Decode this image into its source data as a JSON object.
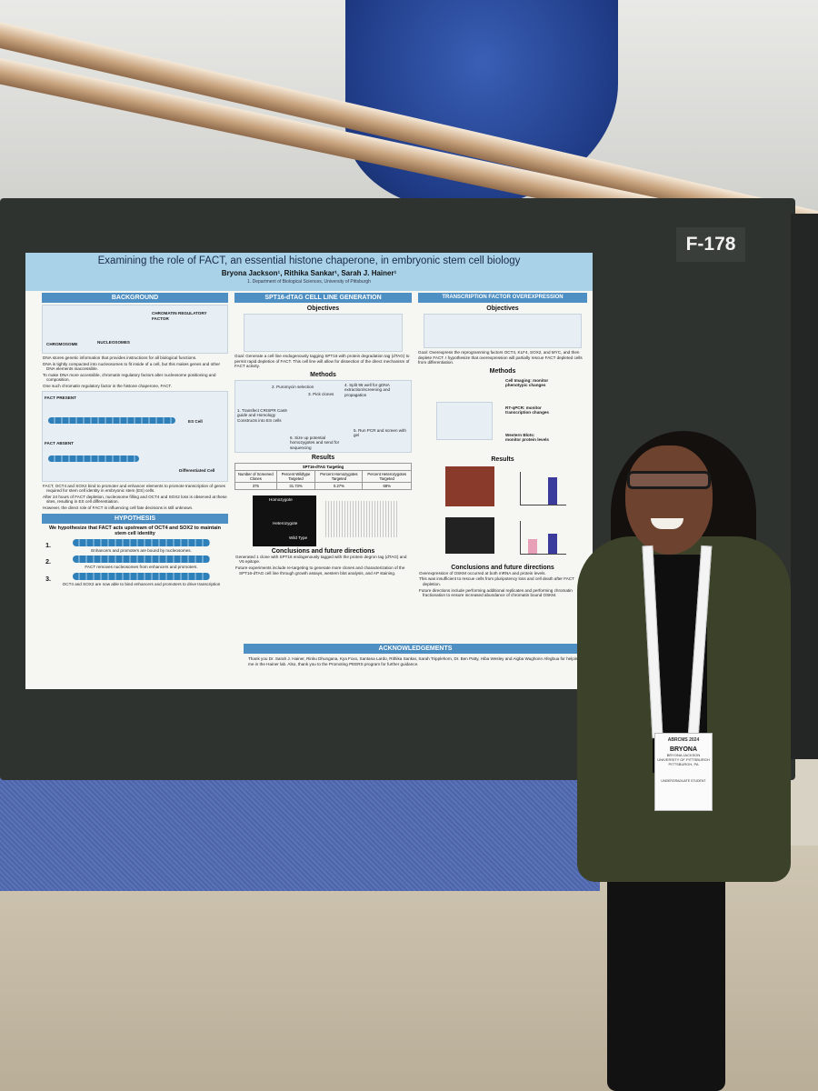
{
  "sign": "F-178",
  "poster": {
    "title": "Examining the role of FACT, an essential histone chaperone, in embryonic stem cell biology",
    "authors": "Bryona Jackson¹, Rithika Sankar¹, Sarah J. Hainer¹",
    "affiliation": "1. Department of Biological Sciences, University of Pittsburgh",
    "background": {
      "heading": "BACKGROUND",
      "bullets": [
        "DNA stores genetic information that provides instructions for all biological functions.",
        "DNA is tightly compacted into nucleosomes to fit inside of a cell, but this makes genes and other DNA elements inaccessible.",
        "To make DNA more accessible, chromatin regulatory factors alter nucleosome positioning and composition.",
        "One such chromatin regulatory factor is the histone chaperone, FACT."
      ],
      "diagram_labels": [
        "CHROMOSOME",
        "NUCLEOSOMES",
        "CHROMATIN REGULATORY FACTOR",
        "FACT PRESENT",
        "FACT ABSENT",
        "ES Cell",
        "Differentiated Cell"
      ],
      "bullets2": [
        "FACT, OCT4 and SOX2 bind to promoter and enhancer elements to promote transcription of genes required for stem cell identity in embryonic stem (ES) cells.",
        "After 24 hours of FACT depletion, nucleosome filling and OCT4 and SOX2 loss is observed at these sites, resulting in ES cell differentiation.",
        "However, the direct role of FACT in influencing cell fate decisions is still unknown."
      ]
    },
    "hypothesis": {
      "heading": "HYPOTHESIS",
      "statement": "We hypothesize that FACT acts upstream of OCT4 and SOX2 to maintain stem cell identity",
      "steps": [
        {
          "number": "1.",
          "text": "Enhancers and promoters are bound by nucleosomes."
        },
        {
          "number": "2.",
          "text": "FACT removes nucleosomes from enhancers and promoters."
        },
        {
          "number": "3.",
          "text": "OCT4 and SOX2 are now able to bind enhancers and promoters to drive transcription"
        }
      ]
    },
    "spt16": {
      "heading": "SPT16-dTAG CELL LINE GENERATION",
      "objectives": "Objectives",
      "goal": "Goal: Generate a cell line endogenously tagging SPT16 with protein degradation tag (dTAG) to permit rapid depletion of FACT. This cell line will allow for dissection of the direct mechanism of FACT activity.",
      "methods": "Methods",
      "method_steps": [
        "1. Transfect CRISPR Cas9 guide and Homology Constructs into ES cells",
        "2. Puromycin selection",
        "3. Pick clones",
        "4. Split 96 well for gDNA extraction/screening and propagation",
        "5. Run PCR and screen with gel",
        "6. Size up potential homozygotes and send for sequencing"
      ],
      "results": "Results",
      "table": {
        "caption": "SPT16-dTAG Targeting",
        "header": [
          "Number of Screened Clones",
          "Percent Wildtype Targeted",
          "Percent Homozygotes Targeted",
          "Percent Heterozygotes Targeted"
        ],
        "row": [
          "375",
          "31.73%",
          "0.27%",
          "68%"
        ]
      },
      "gel_labels": [
        "Homozygote",
        "Heterozygote",
        "Wild Type"
      ],
      "conclusions": "Conclusions and future directions",
      "conclusion_bullets": [
        "Generated 1 clone with SPT16 endogenously tagged with the protein degron tag (dTAG) and V5 epitope.",
        "Future experiments include re-targeting to generate more clones and characterization of the SPT16-dTAG cell line through growth assays, western blot analysis, and AP staining."
      ]
    },
    "tf": {
      "heading": "TRANSCRIPTION FACTOR OVEREXPRESSION",
      "objectives": "Objectives",
      "goal": "Goal: Overexpress the reprogramming factors OCT4, KLF4, SOX2, and MYC, and then deplete FACT. I hypothesize that overexpression will partially rescue FACT depleted cells from differentiation.",
      "methods": "Methods",
      "method_labels": [
        "Cell Imaging: monitor phenotypic changes",
        "RT-qPCR: monitor transcription changes",
        "Western Blots: monitor protein levels"
      ],
      "results": "Results",
      "conclusions": "Conclusions and future directions",
      "conclusion_bullets": [
        "Overexpression of OSKM occurred at both mRNA and protein levels.",
        "This was insufficient to rescue cells from pluripotency loss and cell death after FACT depletion.",
        "Future directions include performing additional replicates and performing chromatin fractionation to ensure increased abundance of chromatin bound OSKM."
      ]
    },
    "acknowledgements": {
      "heading": "ACKNOWLEDGEMENTS",
      "text": "Thank you Dr. Sarah J. Hainer, Rinku Dhungana, Kya Foxx, Santana Lardo, Rithika Sankar, Sarah Tripplehorn, Dr. Ben Patty, Hiba Wesley and Aigba Wughonn Afegbua for helping me in the Hainer lab. Also, thank you to the Promoting PEERS program for further guidance."
    }
  },
  "badge": {
    "event": "ABRCMS 2024",
    "first_name": "BRYONA",
    "full_name": "BRYONA JACKSON",
    "institution": "UNIVERSITY OF PITTSBURGH",
    "location": "PITTSBURGH, PA",
    "role": "UNDERGRADUATE STUDENT"
  }
}
